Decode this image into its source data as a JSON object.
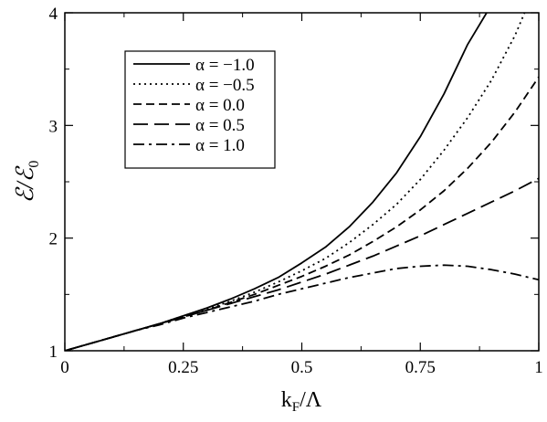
{
  "chart_data": {
    "type": "line",
    "xlabel_main": "k",
    "xlabel_sub": "F",
    "xlabel_rest": "/Λ",
    "ylabel_main": "ℰ/ℰ",
    "ylabel_sub": "0",
    "xlim": [
      0,
      1
    ],
    "ylim": [
      1,
      4
    ],
    "x_ticks": [
      {
        "value": 0,
        "label": "0"
      },
      {
        "value": 0.25,
        "label": "0.25"
      },
      {
        "value": 0.5,
        "label": "0.5"
      },
      {
        "value": 0.75,
        "label": "0.75"
      },
      {
        "value": 1,
        "label": "1"
      }
    ],
    "y_ticks": [
      {
        "value": 1,
        "label": "1"
      },
      {
        "value": 2,
        "label": "2"
      },
      {
        "value": 3,
        "label": "3"
      },
      {
        "value": 4,
        "label": "4"
      }
    ],
    "grid": false,
    "legend_position": "upper-left",
    "series": [
      {
        "name": "α = −1.0",
        "dash": "solid",
        "x": [
          0,
          0.05,
          0.1,
          0.15,
          0.2,
          0.25,
          0.3,
          0.35,
          0.4,
          0.45,
          0.5,
          0.55,
          0.6,
          0.65,
          0.7,
          0.75,
          0.8,
          0.85,
          0.89
        ],
        "y": [
          1.0,
          1.06,
          1.12,
          1.18,
          1.24,
          1.31,
          1.38,
          1.46,
          1.55,
          1.65,
          1.78,
          1.92,
          2.1,
          2.32,
          2.58,
          2.9,
          3.28,
          3.72,
          4.0
        ]
      },
      {
        "name": "α = −0.5",
        "dash": "dotted",
        "x": [
          0,
          0.05,
          0.1,
          0.15,
          0.2,
          0.25,
          0.3,
          0.35,
          0.4,
          0.45,
          0.5,
          0.55,
          0.6,
          0.65,
          0.7,
          0.75,
          0.8,
          0.85,
          0.9,
          0.95,
          0.97
        ],
        "y": [
          1.0,
          1.06,
          1.12,
          1.18,
          1.24,
          1.31,
          1.37,
          1.44,
          1.52,
          1.61,
          1.71,
          1.82,
          1.96,
          2.12,
          2.3,
          2.52,
          2.78,
          3.07,
          3.4,
          3.8,
          4.0
        ]
      },
      {
        "name": "α = 0.0",
        "dash": "dashed",
        "x": [
          0,
          0.05,
          0.1,
          0.15,
          0.2,
          0.25,
          0.3,
          0.35,
          0.4,
          0.45,
          0.5,
          0.55,
          0.6,
          0.65,
          0.7,
          0.75,
          0.8,
          0.85,
          0.9,
          0.95,
          1.0
        ],
        "y": [
          1.0,
          1.06,
          1.12,
          1.18,
          1.24,
          1.3,
          1.36,
          1.43,
          1.5,
          1.58,
          1.66,
          1.75,
          1.85,
          1.97,
          2.1,
          2.25,
          2.42,
          2.62,
          2.85,
          3.12,
          3.43
        ]
      },
      {
        "name": "α = 0.5",
        "dash": "long-dashed",
        "x": [
          0,
          0.05,
          0.1,
          0.15,
          0.2,
          0.25,
          0.3,
          0.35,
          0.4,
          0.45,
          0.5,
          0.55,
          0.6,
          0.65,
          0.7,
          0.75,
          0.8,
          0.85,
          0.9,
          0.95,
          1.0
        ],
        "y": [
          1.0,
          1.06,
          1.12,
          1.18,
          1.24,
          1.3,
          1.36,
          1.42,
          1.48,
          1.54,
          1.61,
          1.68,
          1.76,
          1.84,
          1.93,
          2.02,
          2.12,
          2.22,
          2.32,
          2.42,
          2.53
        ]
      },
      {
        "name": "α = 1.0",
        "dash": "dash-dot",
        "x": [
          0,
          0.05,
          0.1,
          0.15,
          0.2,
          0.25,
          0.3,
          0.35,
          0.4,
          0.45,
          0.5,
          0.55,
          0.6,
          0.65,
          0.7,
          0.75,
          0.8,
          0.85,
          0.9,
          0.95,
          1.0
        ],
        "y": [
          1.0,
          1.06,
          1.12,
          1.18,
          1.23,
          1.29,
          1.34,
          1.39,
          1.44,
          1.5,
          1.55,
          1.6,
          1.65,
          1.69,
          1.73,
          1.75,
          1.76,
          1.75,
          1.72,
          1.68,
          1.63
        ]
      }
    ]
  }
}
